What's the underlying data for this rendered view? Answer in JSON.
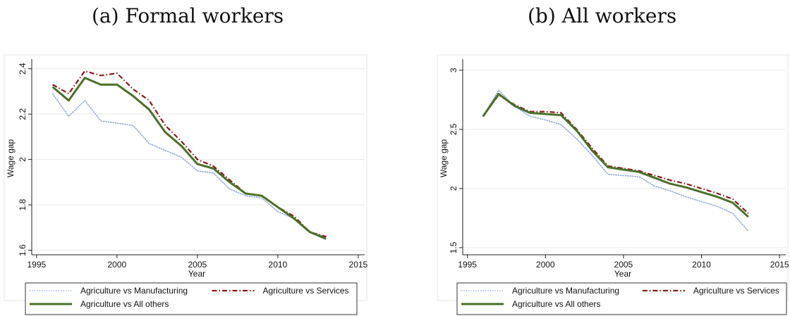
{
  "figure": {
    "panels": [
      {
        "caption": "(a) Formal workers",
        "ylabel": "Wage gap",
        "xlabel": "Year",
        "ylim": [
          1.58,
          2.43
        ],
        "xlim": [
          1994.7,
          2015.4
        ],
        "yticks": [
          "1.6",
          "1.8",
          "2",
          "2.2",
          "2.4"
        ],
        "ytick_values": [
          1.6,
          1.8,
          2.0,
          2.2,
          2.4
        ],
        "xticks": [
          "1995",
          "2000",
          "2005",
          "2010",
          "2015"
        ],
        "xtick_values": [
          1995,
          2000,
          2005,
          2010,
          2015
        ],
        "grid": true,
        "legend_position": "bottom"
      },
      {
        "caption": "(b) All workers",
        "ylabel": "Wage gap",
        "xlabel": "Year",
        "ylim": [
          1.44,
          3.07
        ],
        "xlim": [
          1994.7,
          2015.4
        ],
        "yticks": [
          "1.5",
          "2",
          "2.5",
          "3"
        ],
        "ytick_values": [
          1.5,
          2.0,
          2.5,
          3.0
        ],
        "xticks": [
          "1995",
          "2000",
          "2005",
          "2010",
          "2015"
        ],
        "xtick_values": [
          1995,
          2000,
          2005,
          2010,
          2015
        ],
        "grid": true,
        "legend_position": "bottom"
      }
    ]
  },
  "chart_data": [
    {
      "type": "line",
      "title": "(a) Formal workers",
      "xlabel": "Year",
      "ylabel": "Wage gap",
      "ylim": [
        1.58,
        2.43
      ],
      "grid": true,
      "legend": "bottom",
      "x": [
        1996,
        1997,
        1998,
        1999,
        2000,
        2001,
        2002,
        2003,
        2004,
        2005,
        2006,
        2007,
        2008,
        2009,
        2010,
        2011,
        2012,
        2013
      ],
      "series": [
        {
          "name": "Agriculture vs Manufacturing",
          "color": "#8fa9d6",
          "style": "dotted",
          "values": [
            2.29,
            2.19,
            2.26,
            2.17,
            2.16,
            2.15,
            2.07,
            2.04,
            2.01,
            1.95,
            1.94,
            1.87,
            1.84,
            1.83,
            1.77,
            1.74,
            1.68,
            1.66
          ]
        },
        {
          "name": "Agriculture vs Services",
          "color": "#8b1a1a",
          "style": "dashdot",
          "values": [
            2.33,
            2.29,
            2.39,
            2.37,
            2.38,
            2.31,
            2.26,
            2.15,
            2.08,
            2.0,
            1.97,
            1.91,
            1.85,
            1.84,
            1.79,
            1.75,
            1.68,
            1.66
          ]
        },
        {
          "name": "Agriculture vs All others",
          "color": "#4a7028",
          "style": "solid",
          "values": [
            2.32,
            2.26,
            2.36,
            2.33,
            2.33,
            2.28,
            2.22,
            2.12,
            2.06,
            1.98,
            1.96,
            1.9,
            1.85,
            1.84,
            1.79,
            1.74,
            1.68,
            1.65
          ]
        }
      ]
    },
    {
      "type": "line",
      "title": "(b) All workers",
      "xlabel": "Year",
      "ylabel": "Wage gap",
      "ylim": [
        1.44,
        3.07
      ],
      "grid": true,
      "legend": "bottom",
      "x": [
        1996,
        1997,
        1998,
        1999,
        2000,
        2001,
        2002,
        2003,
        2004,
        2005,
        2006,
        2007,
        2008,
        2009,
        2010,
        2011,
        2012,
        2013
      ],
      "series": [
        {
          "name": "Agriculture vs Manufacturing",
          "color": "#8fa9d6",
          "style": "dotted",
          "values": [
            2.61,
            2.83,
            2.7,
            2.61,
            2.58,
            2.54,
            2.42,
            2.28,
            2.12,
            2.11,
            2.1,
            2.02,
            1.98,
            1.93,
            1.89,
            1.85,
            1.79,
            1.64
          ]
        },
        {
          "name": "Agriculture vs Services",
          "color": "#8b1a1a",
          "style": "dashdot",
          "values": [
            2.61,
            2.79,
            2.71,
            2.65,
            2.65,
            2.64,
            2.5,
            2.34,
            2.19,
            2.17,
            2.15,
            2.11,
            2.07,
            2.04,
            2.0,
            1.96,
            1.91,
            1.79
          ]
        },
        {
          "name": "Agriculture vs All others",
          "color": "#4a7028",
          "style": "solid",
          "values": [
            2.61,
            2.8,
            2.7,
            2.64,
            2.63,
            2.62,
            2.49,
            2.32,
            2.18,
            2.16,
            2.14,
            2.09,
            2.04,
            2.01,
            1.97,
            1.93,
            1.88,
            1.76
          ]
        }
      ]
    }
  ]
}
